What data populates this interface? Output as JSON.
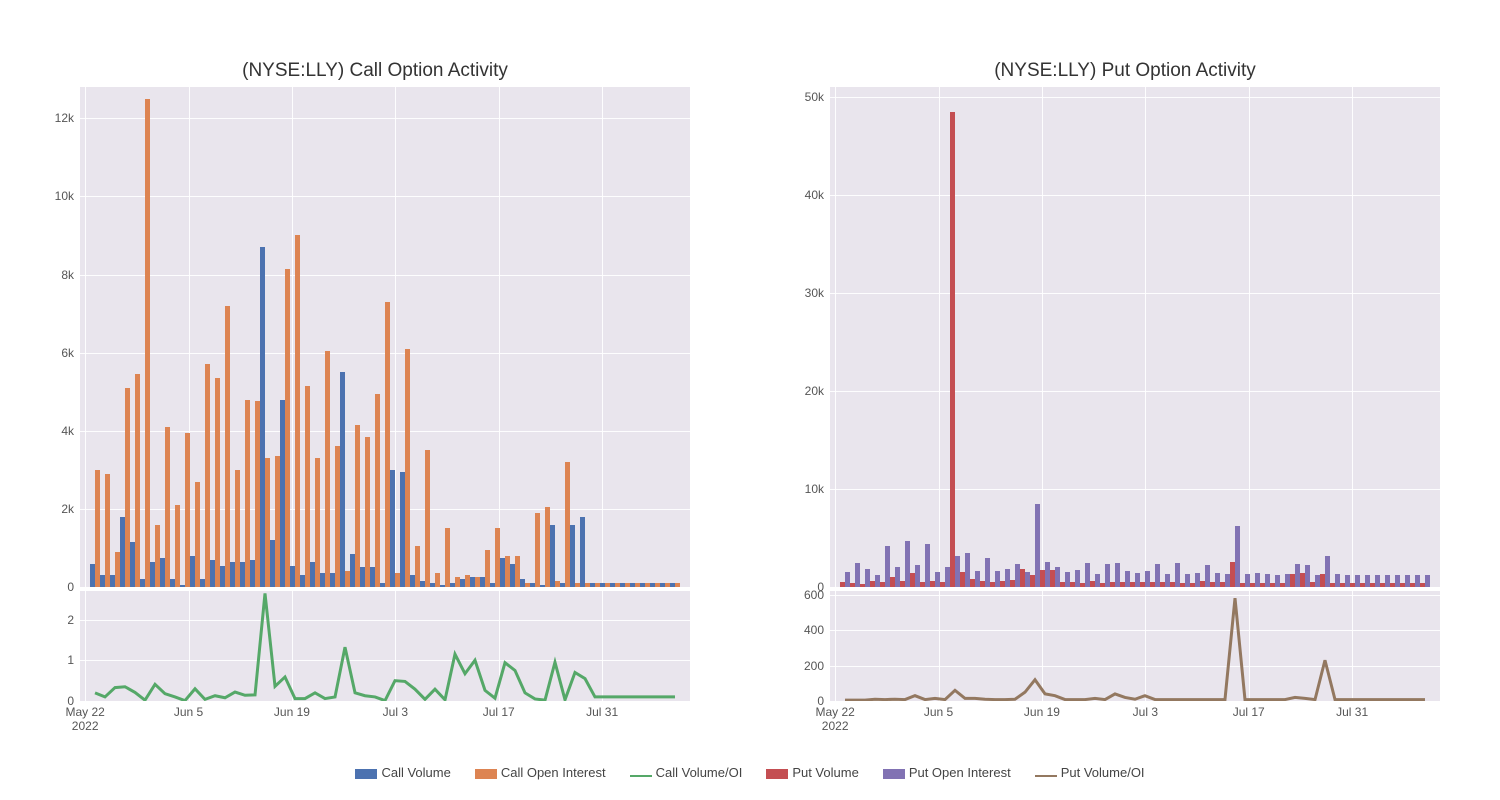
{
  "background_color": "#ffffff",
  "plot_bg": "#e9e5ed",
  "grid_color": "#ffffff",
  "text_color": "#555555",
  "title_fontsize": 19,
  "tick_fontsize": 12,
  "legend": {
    "items": [
      {
        "label": "Call Volume",
        "type": "box",
        "color": "#4c72b0"
      },
      {
        "label": "Call Open Interest",
        "type": "box",
        "color": "#dd8452"
      },
      {
        "label": "Call Volume/OI",
        "type": "line",
        "color": "#55a868"
      },
      {
        "label": "Put Volume",
        "type": "box",
        "color": "#c44e52"
      },
      {
        "label": "Put Open Interest",
        "type": "box",
        "color": "#8172b3"
      },
      {
        "label": "Put Volume/OI",
        "type": "line",
        "color": "#937860"
      }
    ]
  },
  "x_ticks": [
    "May 22",
    "Jun 5",
    "Jun 19",
    "Jul 3",
    "Jul 17",
    "Jul 31"
  ],
  "x_tick_positions": [
    0,
    10,
    20,
    30,
    40,
    50
  ],
  "x_year_label": "2022",
  "n_points": 59,
  "left": {
    "title": "(NYSE:LLY) Call Option Activity",
    "bars": {
      "ymax": 12800,
      "yticks": [
        0,
        2000,
        4000,
        6000,
        8000,
        10000,
        12000
      ],
      "ytick_labels": [
        "0",
        "2k",
        "4k",
        "6k",
        "8k",
        "10k",
        "12k"
      ],
      "series": [
        {
          "color": "#4c72b0",
          "name": "Call Volume",
          "values": [
            600,
            300,
            300,
            1800,
            1150,
            200,
            650,
            750,
            200,
            50,
            800,
            200,
            700,
            550,
            650,
            650,
            700,
            8700,
            1200,
            4800,
            550,
            300,
            650,
            350,
            350,
            5500,
            850,
            500,
            500,
            100,
            3000,
            2950,
            300,
            150,
            100,
            50,
            100,
            200,
            250,
            250,
            100,
            750,
            600,
            200,
            100,
            50,
            1600,
            100,
            1600,
            1800,
            100,
            100,
            100,
            100,
            100,
            100,
            100,
            100,
            100
          ]
        },
        {
          "color": "#dd8452",
          "name": "Call Open Interest",
          "values": [
            3000,
            2900,
            900,
            5100,
            5450,
            12500,
            1600,
            4100,
            2100,
            3950,
            2700,
            5700,
            5350,
            7200,
            3000,
            4800,
            4750,
            3300,
            3350,
            8150,
            9000,
            5150,
            3300,
            6050,
            3600,
            400,
            4150,
            3850,
            4950,
            7300,
            350,
            6100,
            1050,
            3500,
            350,
            1500,
            250,
            300,
            250,
            950,
            1500,
            800,
            800,
            100,
            1900,
            2050,
            150,
            3200,
            100,
            100,
            100,
            100,
            100,
            100,
            100,
            100,
            100,
            100,
            100
          ]
        }
      ]
    },
    "line": {
      "ymax": 2.7,
      "yticks": [
        0,
        1,
        2
      ],
      "ytick_labels": [
        "0",
        "1",
        "2"
      ],
      "color": "#55a868",
      "name": "Call Volume/OI",
      "values": [
        0.2,
        0.1,
        0.33,
        0.35,
        0.21,
        0.02,
        0.41,
        0.18,
        0.1,
        0.01,
        0.3,
        0.04,
        0.13,
        0.08,
        0.22,
        0.14,
        0.15,
        2.64,
        0.36,
        0.59,
        0.06,
        0.06,
        0.2,
        0.06,
        0.1,
        1.32,
        0.2,
        0.13,
        0.1,
        0.01,
        0.5,
        0.48,
        0.29,
        0.04,
        0.29,
        0.03,
        1.15,
        0.67,
        1.0,
        0.26,
        0.07,
        0.94,
        0.75,
        0.2,
        0.05,
        0.02,
        0.95,
        0.03,
        0.7,
        0.55,
        0.1,
        0.1,
        0.1,
        0.1,
        0.1,
        0.1,
        0.1,
        0.1,
        0.1
      ]
    }
  },
  "right": {
    "title": "(NYSE:LLY) Put Option Activity",
    "bars": {
      "ymax": 51000,
      "yticks": [
        0,
        10000,
        20000,
        30000,
        40000,
        50000
      ],
      "ytick_labels": [
        "0",
        "10k",
        "20k",
        "30k",
        "40k",
        "50k"
      ],
      "series": [
        {
          "color": "#c44e52",
          "name": "Put Volume",
          "values": [
            500,
            400,
            300,
            600,
            500,
            1000,
            600,
            1400,
            500,
            600,
            500,
            48500,
            1500,
            800,
            600,
            500,
            600,
            700,
            1800,
            1200,
            1700,
            1700,
            500,
            500,
            400,
            600,
            400,
            500,
            500,
            500,
            500,
            500,
            500,
            500,
            400,
            400,
            600,
            500,
            500,
            2600,
            400,
            400,
            400,
            400,
            400,
            1300,
            1400,
            500,
            1300,
            400,
            400,
            400,
            400,
            400,
            400,
            400,
            400,
            400,
            400
          ]
        },
        {
          "color": "#8172b3",
          "name": "Put Open Interest",
          "values": [
            1500,
            2500,
            1800,
            1200,
            4200,
            2000,
            4700,
            2200,
            4400,
            1500,
            2000,
            3200,
            3500,
            1600,
            3000,
            1600,
            1800,
            2300,
            1500,
            8500,
            2600,
            2000,
            1500,
            1700,
            2500,
            1300,
            2300,
            2400,
            1600,
            1400,
            1600,
            2300,
            1300,
            2500,
            1300,
            1400,
            2200,
            1400,
            1300,
            6200,
            1300,
            1400,
            1300,
            1200,
            1300,
            2300,
            2200,
            1200,
            3200,
            1300,
            1200,
            1200,
            1200,
            1200,
            1200,
            1200,
            1200,
            1200,
            1200
          ]
        }
      ]
    },
    "line": {
      "ymax": 620,
      "yticks": [
        0,
        200,
        400,
        600
      ],
      "ytick_labels": [
        "0",
        "200",
        "400",
        "600"
      ],
      "color": "#937860",
      "name": "Put Volume/OI",
      "values": [
        5,
        5,
        5,
        10,
        8,
        10,
        8,
        30,
        8,
        15,
        8,
        60,
        15,
        15,
        10,
        8,
        8,
        10,
        50,
        120,
        40,
        30,
        8,
        8,
        8,
        15,
        8,
        40,
        20,
        10,
        30,
        8,
        8,
        8,
        8,
        8,
        8,
        8,
        8,
        580,
        8,
        8,
        8,
        8,
        8,
        20,
        15,
        8,
        230,
        8,
        8,
        8,
        8,
        8,
        8,
        8,
        8,
        8,
        8
      ]
    }
  }
}
